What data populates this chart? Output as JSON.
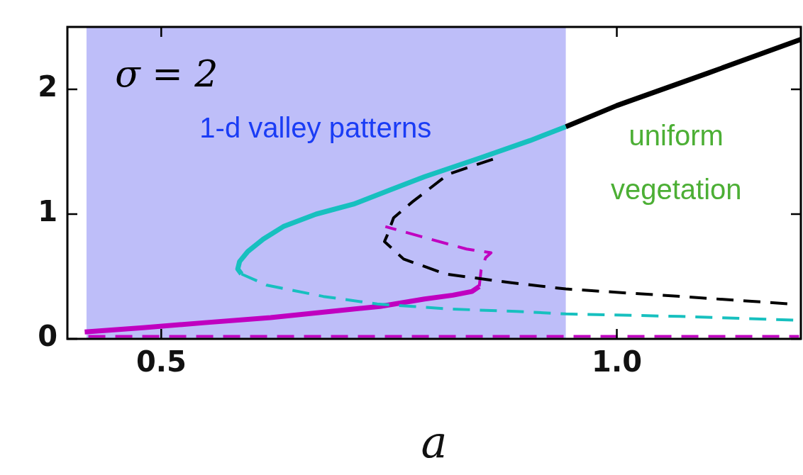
{
  "chart_data": {
    "type": "line",
    "xlabel": "a",
    "xlim": [
      0.397,
      1.202
    ],
    "ylim": [
      0,
      2.5
    ],
    "xticks": [
      0.5,
      {
        "value": 1,
        "label": "1.0"
      }
    ],
    "yticks": [
      0,
      1,
      2
    ],
    "grid": false,
    "legend": false,
    "marker": "none",
    "annotations": [
      "σ = 2",
      "uniform vegetation"
    ],
    "bands": [
      {
        "axis": "x",
        "from": 0.418,
        "to": 0.944,
        "label": "1-d valley patterns",
        "color": "#bebef9"
      }
    ],
    "series": [
      {
        "color": "#17c0bf",
        "line_style": "solid",
        "x": [
          0.588,
          0.584,
          0.586,
          0.595,
          0.612,
          0.634,
          0.67,
          0.711,
          0.75,
          0.789,
          0.85,
          0.905,
          0.944
        ],
        "values": [
          0.52,
          0.56,
          0.62,
          0.7,
          0.8,
          0.9,
          1.0,
          1.08,
          1.19,
          1.3,
          1.45,
          1.59,
          1.7
        ]
      },
      {
        "color": "#000000",
        "line_style": "solid",
        "x": [
          0.944,
          1.0,
          1.1,
          1.202
        ],
        "values": [
          1.7,
          1.87,
          2.13,
          2.4
        ]
      },
      {
        "color": "#17c0bf",
        "line_style": "dashed",
        "x": [
          0.588,
          0.616,
          0.678,
          0.737,
          0.815,
          0.89,
          0.944,
          1.07,
          1.195
        ],
        "values": [
          0.52,
          0.43,
          0.34,
          0.28,
          0.24,
          0.22,
          0.2,
          0.18,
          0.15
        ]
      },
      {
        "color": "#000000",
        "line_style": "dashed",
        "x": [
          0.864,
          0.815,
          0.776,
          0.755,
          0.748,
          0.745,
          0.766,
          0.812,
          0.884,
          0.944,
          1.07,
          1.19
        ],
        "values": [
          1.44,
          1.32,
          1.1,
          0.97,
          0.83,
          0.78,
          0.64,
          0.52,
          0.45,
          0.4,
          0.34,
          0.28
        ]
      },
      {
        "color": "#c000c0",
        "line_style": "solid",
        "x": [
          0.416,
          0.48,
          0.548,
          0.62,
          0.686,
          0.74,
          0.789,
          0.82,
          0.841,
          0.849
        ],
        "values": [
          0.055,
          0.09,
          0.13,
          0.17,
          0.22,
          0.26,
          0.32,
          0.35,
          0.38,
          0.42
        ]
      },
      {
        "color": "#c000c0",
        "line_style": "dashed",
        "x": [
          0.849,
          0.851,
          0.856,
          0.862,
          0.835,
          0.79,
          0.746
        ],
        "values": [
          0.42,
          0.55,
          0.65,
          0.69,
          0.72,
          0.81,
          0.9
        ]
      },
      {
        "color": "#c000c0",
        "line_style": "dashed",
        "x": [
          0.42,
          0.6,
          0.8,
          1.0,
          1.2
        ],
        "values": [
          0.02,
          0.02,
          0.02,
          0.02,
          0.02
        ]
      }
    ]
  }
}
